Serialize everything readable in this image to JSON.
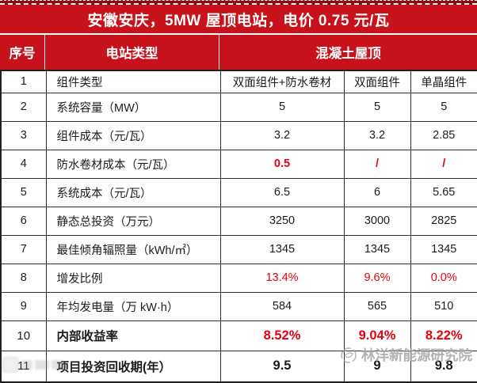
{
  "title": "安徽安庆，5MW 屋顶电站，电价 0.75 元/瓦",
  "header": {
    "col_no": "序号",
    "col_type": "电站类型",
    "col_group": "混凝土屋顶"
  },
  "table": {
    "rows": [
      {
        "no": "1",
        "label": "组件类型",
        "values": [
          "双面组件+防水卷材",
          "双面组件",
          "单晶组件"
        ],
        "emphasis": "none",
        "label_bold": false,
        "large_text": false
      },
      {
        "no": "2",
        "label": "系统容量（MW）",
        "values": [
          "5",
          "5",
          "5"
        ],
        "emphasis": "none",
        "label_bold": false,
        "large_text": false
      },
      {
        "no": "3",
        "label": "组件成本（元/瓦）",
        "values": [
          "3.2",
          "3.2",
          "2.85"
        ],
        "emphasis": "none",
        "label_bold": false,
        "large_text": false
      },
      {
        "no": "4",
        "label": "防水卷材成本（元/瓦）",
        "values": [
          "0.5",
          "/",
          "/"
        ],
        "emphasis": "red-strong",
        "label_bold": false,
        "large_text": false
      },
      {
        "no": "5",
        "label": "系统成本（元/瓦）",
        "values": [
          "6.5",
          "6",
          "5.65"
        ],
        "emphasis": "none",
        "label_bold": false,
        "large_text": false
      },
      {
        "no": "6",
        "label": "静态总投资（万元）",
        "values": [
          "3250",
          "3000",
          "2825"
        ],
        "emphasis": "none",
        "label_bold": false,
        "large_text": false
      },
      {
        "no": "7",
        "label": "最佳倾角辐照量（kWh/㎡）",
        "values": [
          "1345",
          "1345",
          "1345"
        ],
        "emphasis": "none",
        "label_bold": false,
        "large_text": false
      },
      {
        "no": "8",
        "label": "增发比例",
        "values": [
          "13.4%",
          "9.6%",
          "0.0%"
        ],
        "emphasis": "red",
        "label_bold": false,
        "large_text": false
      },
      {
        "no": "9",
        "label": "年均发电量（万 kW·h）",
        "values": [
          "584",
          "565",
          "510"
        ],
        "emphasis": "none",
        "label_bold": false,
        "large_text": false
      },
      {
        "no": "10",
        "label": "内部收益率",
        "values": [
          "8.52%",
          "9.04%",
          "8.22%"
        ],
        "emphasis": "red-strong",
        "label_bold": true,
        "large_text": true
      },
      {
        "no": "11",
        "label": "项目投资回收期(年）",
        "values": [
          "9.5",
          "9",
          "9.8"
        ],
        "emphasis": "strong",
        "label_bold": true,
        "large_text": true
      }
    ]
  },
  "watermark": {
    "text": "林洋新能源研究院",
    "logo": "swirl-logo-icon"
  },
  "colors": {
    "header_red": "#c8121b",
    "header_red_dark": "#8e0a10",
    "accent_red": "#e60112",
    "watermark_gray": "#a2a2a2"
  }
}
